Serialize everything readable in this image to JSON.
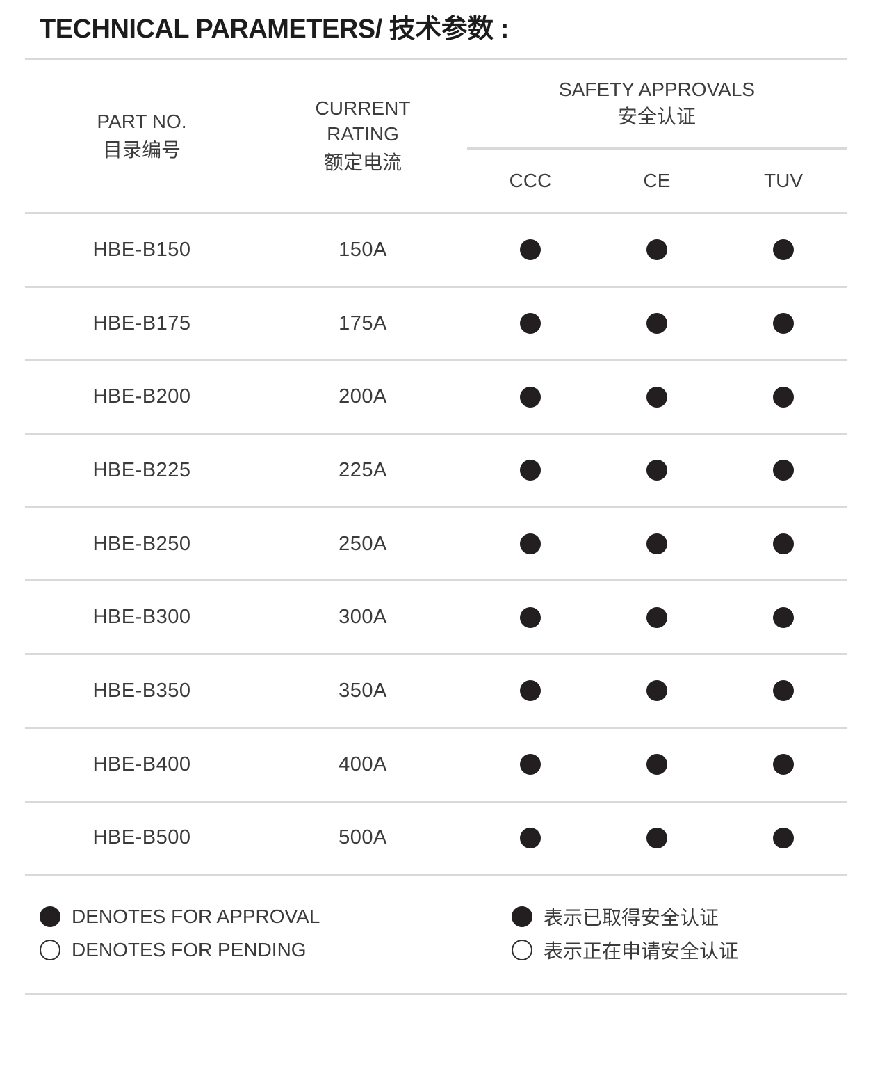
{
  "page": {
    "title": "TECHNICAL PARAMETERS/ 技术参数 :"
  },
  "table": {
    "header": {
      "part_no_en": "PART NO.",
      "part_no_zh": "目录编号",
      "current_rating_en": "CURRENT RATING",
      "current_rating_zh": "额定电流",
      "safety_approvals_en": "SAFETY APPROVALS",
      "safety_approvals_zh": "安全认证",
      "subcolumns": [
        "CCC",
        "CE",
        "TUV"
      ]
    },
    "rows": [
      {
        "part_no": "HBE-B150",
        "current_rating": "150A",
        "approvals": {
          "ccc": "approved",
          "ce": "approved",
          "tuv": "approved"
        }
      },
      {
        "part_no": "HBE-B175",
        "current_rating": "175A",
        "approvals": {
          "ccc": "approved",
          "ce": "approved",
          "tuv": "approved"
        }
      },
      {
        "part_no": "HBE-B200",
        "current_rating": "200A",
        "approvals": {
          "ccc": "approved",
          "ce": "approved",
          "tuv": "approved"
        }
      },
      {
        "part_no": "HBE-B225",
        "current_rating": "225A",
        "approvals": {
          "ccc": "approved",
          "ce": "approved",
          "tuv": "approved"
        }
      },
      {
        "part_no": "HBE-B250",
        "current_rating": "250A",
        "approvals": {
          "ccc": "approved",
          "ce": "approved",
          "tuv": "approved"
        }
      },
      {
        "part_no": "HBE-B300",
        "current_rating": "300A",
        "approvals": {
          "ccc": "approved",
          "ce": "approved",
          "tuv": "approved"
        }
      },
      {
        "part_no": "HBE-B350",
        "current_rating": "350A",
        "approvals": {
          "ccc": "approved",
          "ce": "approved",
          "tuv": "approved"
        }
      },
      {
        "part_no": "HBE-B400",
        "current_rating": "400A",
        "approvals": {
          "ccc": "approved",
          "ce": "approved",
          "tuv": "approved"
        }
      },
      {
        "part_no": "HBE-B500",
        "current_rating": "500A",
        "approvals": {
          "ccc": "approved",
          "ce": "approved",
          "tuv": "approved"
        }
      }
    ]
  },
  "legend": {
    "approved_en": "DENOTES FOR APPROVAL",
    "pending_en": "DENOTES FOR PENDING",
    "approved_zh": "表示已取得安全认证",
    "pending_zh": "表示正在申请安全认证"
  },
  "symbols": {
    "approved": "●",
    "pending": "○"
  },
  "colors": {
    "dot": "#231f20",
    "divider": "#d9d9d9",
    "text": "#3a3a3a",
    "title": "#1c1c1c"
  }
}
